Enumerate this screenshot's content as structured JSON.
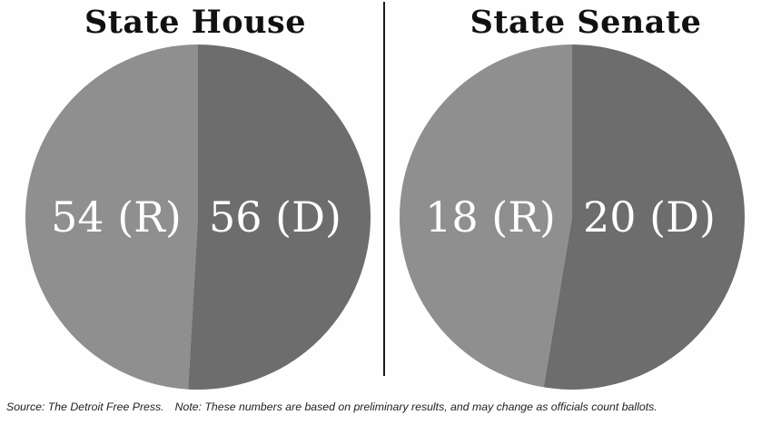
{
  "chart_data": [
    {
      "type": "pie",
      "title": "State House",
      "slices": [
        {
          "party": "R",
          "value": 54,
          "label": "54 (R)",
          "color": "#8f8f8f"
        },
        {
          "party": "D",
          "value": 56,
          "label": "56 (D)",
          "color": "#6d6d6d"
        }
      ]
    },
    {
      "type": "pie",
      "title": "State Senate",
      "slices": [
        {
          "party": "R",
          "value": 18,
          "label": "18 (R)",
          "color": "#8f8f8f"
        },
        {
          "party": "D",
          "value": 20,
          "label": "20 (D)",
          "color": "#6d6d6d"
        }
      ]
    }
  ],
  "footer": {
    "source": "Source: The Detroit Free Press.",
    "note": "Note: These numbers are based on preliminary results, and may change as officials count ballots."
  }
}
